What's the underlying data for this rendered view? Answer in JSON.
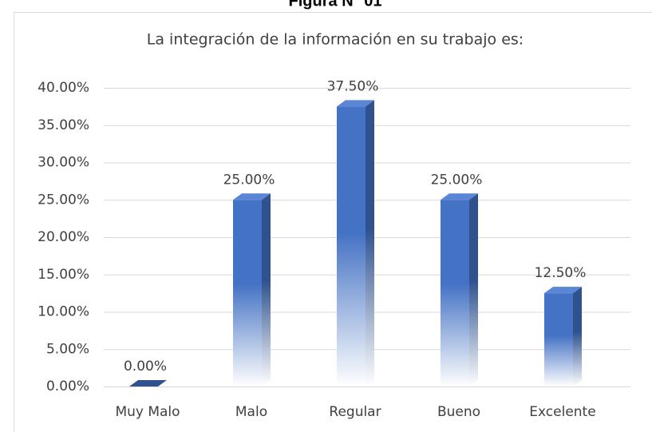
{
  "heading": "Figura N° 01",
  "chart_data": {
    "type": "bar3d",
    "title": "La integración de la información en su trabajo es:",
    "categories": [
      "Muy Malo",
      "Malo",
      "Regular",
      "Bueno",
      "Excelente"
    ],
    "values": [
      0,
      25,
      37.5,
      25,
      12.5
    ],
    "value_labels": [
      "0.00%",
      "25.00%",
      "37.50%",
      "25.00%",
      "12.50%"
    ],
    "color": "#4472c4",
    "ylim": [
      0,
      40
    ],
    "yticks": [
      {
        "value": 0,
        "label": "0.00%"
      },
      {
        "value": 5,
        "label": "5.00%"
      },
      {
        "value": 10,
        "label": "10.00%"
      },
      {
        "value": 15,
        "label": "15.00%"
      },
      {
        "value": 20,
        "label": "20.00%"
      },
      {
        "value": 25,
        "label": "25.00%"
      },
      {
        "value": 30,
        "label": "30.00%"
      },
      {
        "value": 35,
        "label": "35.00%"
      },
      {
        "value": 40,
        "label": "40.00%"
      }
    ],
    "grid": true
  }
}
